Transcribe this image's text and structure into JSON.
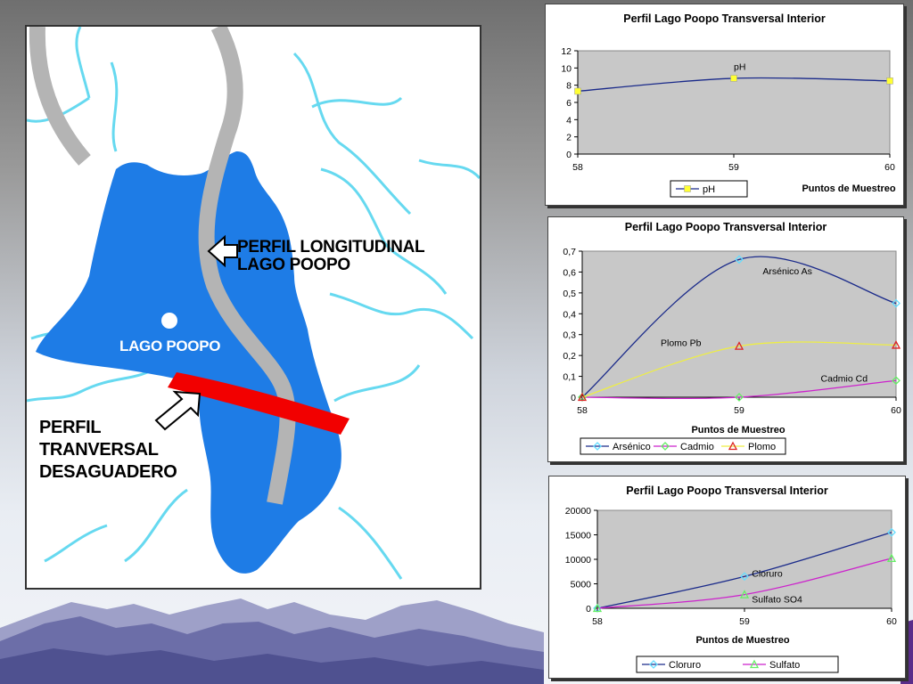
{
  "map": {
    "label_lake": "LAGO POOPO",
    "label_longitudinal": [
      "PERFIL LONGITUDINAL",
      "LAGO POOPO"
    ],
    "label_transversal": [
      "PERFIL",
      "TRANVERSAL",
      "DESAGUADERO"
    ],
    "colors": {
      "lake": "#1e7ce6",
      "rivers": "#66d9f0",
      "longitudinal_profile": "#b4b4b4",
      "transversal_profile": "#f20000"
    }
  },
  "chart_data": [
    {
      "type": "line",
      "title": "Perfil  Lago Poopo Transversal Interior",
      "xlabel": "Puntos de Muestreo",
      "ylabel": "",
      "x": [
        58,
        59,
        60
      ],
      "xticks": [
        "58",
        "59",
        "60"
      ],
      "ylim": [
        0,
        12
      ],
      "yticks": [
        "0",
        "2",
        "4",
        "6",
        "8",
        "10",
        "12"
      ],
      "series": [
        {
          "name": "pH",
          "values": [
            7.3,
            8.8,
            8.5
          ],
          "color": "#1a2a8a",
          "marker": "square",
          "marker_color": "#ffff33"
        }
      ],
      "annotations": [
        {
          "text": "pH",
          "x": 59,
          "y": 9.8
        }
      ],
      "grid": false,
      "legend": "bottom"
    },
    {
      "type": "line",
      "title": "Perfil Lago Poopo Transversal Interior",
      "xlabel": "Puntos de Muestreo",
      "ylabel": "",
      "x": [
        58,
        59,
        60
      ],
      "xticks": [
        "58",
        "59",
        "60"
      ],
      "ylim": [
        0,
        0.7
      ],
      "yticks": [
        "0",
        "0,1",
        "0,2",
        "0,3",
        "0,4",
        "0,5",
        "0,6",
        "0,7"
      ],
      "series": [
        {
          "name": "Arsénico",
          "values": [
            0.0,
            0.66,
            0.45
          ],
          "color": "#1a2a8a",
          "marker": "diamond",
          "marker_color": "#66ddff"
        },
        {
          "name": "Cadmio",
          "values": [
            0.0,
            0.0,
            0.08
          ],
          "color": "#cc22cc",
          "marker": "diamond",
          "marker_color": "#66ee66"
        },
        {
          "name": "Plomo",
          "values": [
            0.0,
            0.245,
            0.25
          ],
          "color": "#eeee44",
          "marker": "triangle",
          "marker_color": "#dd2222"
        }
      ],
      "annotations": [
        {
          "text": "Arsénico As",
          "x": 59.15,
          "y": 0.59
        },
        {
          "text": "Plomo Pb",
          "x": 58.5,
          "y": 0.245
        },
        {
          "text": "Cadmio Cd",
          "x": 59.52,
          "y": 0.075
        }
      ],
      "grid": false,
      "legend": "bottom"
    },
    {
      "type": "line",
      "title": "Perfil Lago Poopo Transversal Interior",
      "xlabel": "Puntos de Muestreo",
      "ylabel": "",
      "x": [
        58,
        59,
        60
      ],
      "xticks": [
        "58",
        "59",
        "60"
      ],
      "ylim": [
        0,
        20000
      ],
      "yticks": [
        "0",
        "5000",
        "10000",
        "15000",
        "20000"
      ],
      "series": [
        {
          "name": "Cloruro",
          "values": [
            0,
            6500,
            15500
          ],
          "color": "#1a2a8a",
          "marker": "diamond",
          "marker_color": "#66ddff"
        },
        {
          "name": "Sulfato",
          "values": [
            0,
            2800,
            10200
          ],
          "color": "#cc22cc",
          "marker": "triangle",
          "marker_color": "#66ee66"
        }
      ],
      "annotations": [
        {
          "text": "Cloruro",
          "x": 59.05,
          "y": 6500
        },
        {
          "text": "Sulfato SO4",
          "x": 59.05,
          "y": 1200
        }
      ],
      "grid": false,
      "legend": "bottom"
    }
  ]
}
